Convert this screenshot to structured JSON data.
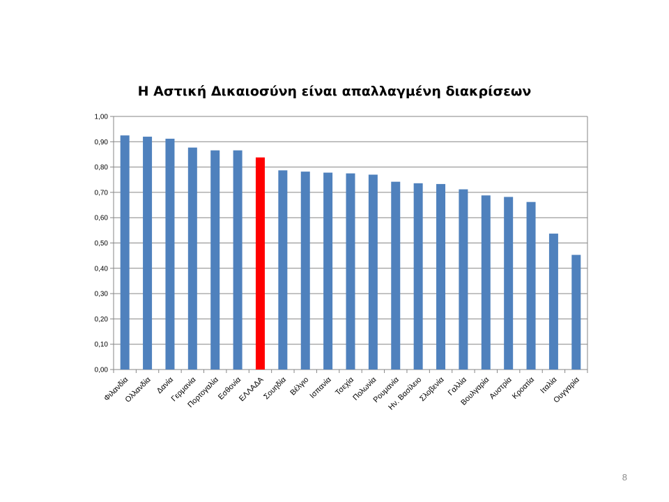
{
  "slide": {
    "page_number": "8"
  },
  "chart_data": {
    "type": "bar",
    "title": "Η Αστική Δικαιοσύνη είναι απαλλαγμένη διακρίσεων",
    "xlabel": "",
    "ylabel": "",
    "ylim": [
      0,
      1
    ],
    "yticks": [
      "0,00",
      "0,10",
      "0,20",
      "0,30",
      "0,40",
      "0,50",
      "0,60",
      "0,70",
      "0,80",
      "0,90",
      "1,00"
    ],
    "grid": true,
    "legend": "none",
    "categories": [
      "Φιλανδία",
      "Ολλανδία",
      "Δανία",
      "Γερμανία",
      "Πορτογαλία",
      "Εσθονία",
      "ΕΛΛΑΔΑ",
      "Σουηδία",
      "Βέλγιο",
      "Ισπανία",
      "Τσεχία",
      "Πολωνία",
      "Ρουμανία",
      "Ην. Βασίλειο",
      "Σλοβενία",
      "Γαλλία",
      "Βουλγαρία",
      "Αυστρία",
      "Κροατία",
      "Ιταλία",
      "Ουγγαρία"
    ],
    "values": [
      0.925,
      0.92,
      0.912,
      0.877,
      0.866,
      0.866,
      0.838,
      0.787,
      0.782,
      0.778,
      0.775,
      0.77,
      0.742,
      0.736,
      0.733,
      0.712,
      0.688,
      0.682,
      0.662,
      0.537,
      0.453
    ],
    "bar_color": "#4f81bd",
    "highlight": {
      "category": "ΕΛΛΑΔΑ",
      "color": "#ff0000"
    },
    "gridline_color": "#868686"
  }
}
